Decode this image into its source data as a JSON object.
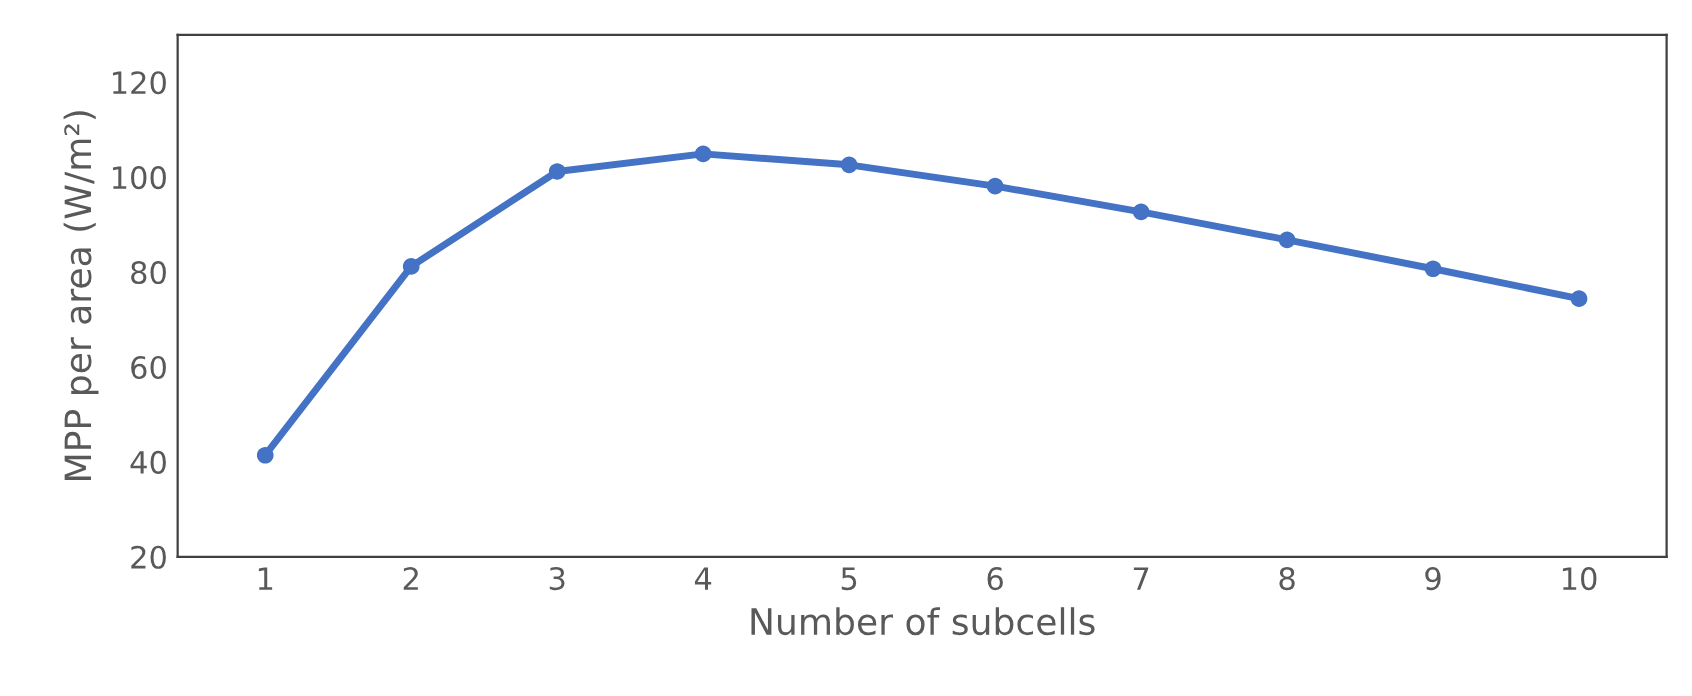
{
  "chart_data": {
    "type": "line",
    "xlabel": "Number of subcells",
    "ylabel": "MPP per area (W/m²)",
    "categories": [
      "1",
      "2",
      "3",
      "4",
      "5",
      "6",
      "7",
      "8",
      "9",
      "10"
    ],
    "series": [
      {
        "color": "#4472c4",
        "values": [
          41.4,
          81.2,
          101.2,
          104.9,
          102.6,
          98.1,
          92.7,
          86.8,
          80.7,
          74.4
        ]
      }
    ],
    "ylim": [
      20,
      130
    ],
    "yticks": [
      20,
      40,
      60,
      80,
      100,
      120
    ],
    "grid": false,
    "legend": false,
    "marker": "circle",
    "line_style": "solid"
  }
}
